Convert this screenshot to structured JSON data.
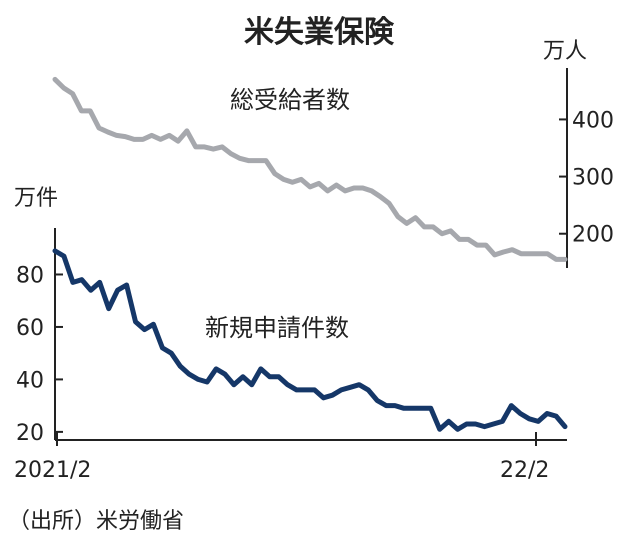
{
  "chart_data": [
    {
      "type": "line",
      "title": "米失業保険",
      "source": "（出所）米労働省",
      "ylabel": "万人",
      "ylim": [
        140,
        490
      ],
      "yticks": [
        200,
        300,
        400
      ],
      "x_labels": [
        "2021/2",
        "22/2"
      ],
      "grid": false,
      "series": [
        {
          "name": "総受給者数",
          "color": "#a6a8ad",
          "values": [
            470,
            455,
            445,
            415,
            415,
            385,
            378,
            372,
            370,
            365,
            365,
            372,
            365,
            372,
            362,
            380,
            352,
            352,
            348,
            352,
            340,
            332,
            328,
            328,
            328,
            305,
            295,
            290,
            295,
            282,
            288,
            275,
            285,
            275,
            280,
            280,
            275,
            265,
            253,
            230,
            218,
            228,
            212,
            212,
            200,
            205,
            190,
            190,
            180,
            180,
            163,
            168,
            172,
            165,
            165,
            165,
            165,
            155,
            155
          ]
        }
      ]
    },
    {
      "type": "line",
      "ylabel": "万件",
      "ylim": [
        15,
        92
      ],
      "yticks": [
        20,
        40,
        60,
        80
      ],
      "x_labels": [
        "2021/2",
        "22/2"
      ],
      "grid": false,
      "series": [
        {
          "name": "新規申請件数",
          "color": "#153768",
          "values": [
            89,
            87,
            77,
            78,
            74,
            77,
            67,
            74,
            76,
            62,
            59,
            61,
            52,
            50,
            45,
            42,
            40,
            39,
            44,
            42,
            38,
            41,
            38,
            44,
            41,
            41,
            38,
            36,
            36,
            36,
            33,
            34,
            36,
            37,
            38,
            36,
            32,
            30,
            30,
            29,
            29,
            29,
            29,
            21,
            24,
            21,
            23,
            23,
            22,
            23,
            24,
            30,
            27,
            25,
            24,
            27,
            26,
            22
          ]
        }
      ]
    }
  ]
}
